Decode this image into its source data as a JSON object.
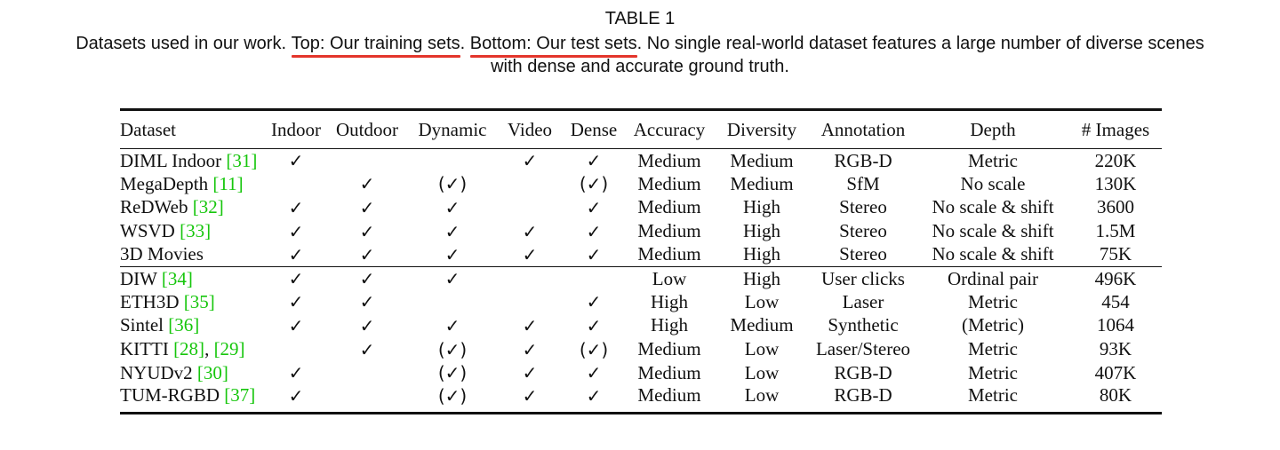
{
  "caption": {
    "title": "TABLE 1",
    "line1_pre": "Datasets used in our work. ",
    "line1_hl1": "Top: Our training sets",
    "line1_mid": ". ",
    "line1_hl2": "Bottom: Our test sets",
    "line1_post": ". No single real-world dataset features a large number of diverse scenes",
    "line2": "with dense and accurate ground truth."
  },
  "colors": {
    "underline": "#e3352b",
    "reference": "#16c60c"
  },
  "table": {
    "headers": [
      "Dataset",
      "Indoor",
      "Outdoor",
      "Dynamic",
      "Video",
      "Dense",
      "Accuracy",
      "Diversity",
      "Annotation",
      "Depth",
      "# Images"
    ],
    "training_rows": [
      {
        "name": "DIML Indoor ",
        "refs": [
          {
            "text": "[31]",
            "ref": true
          }
        ],
        "indoor": "✓",
        "outdoor": "",
        "dynamic": "",
        "video": "✓",
        "dense": "✓",
        "accuracy": "Medium",
        "diversity": "Medium",
        "annotation": "RGB-D",
        "depth": "Metric",
        "images": "220K"
      },
      {
        "name": "MegaDepth ",
        "refs": [
          {
            "text": "[11]",
            "ref": true
          }
        ],
        "indoor": "",
        "outdoor": "✓",
        "dynamic": "(✓)",
        "video": "",
        "dense": "(✓)",
        "accuracy": "Medium",
        "diversity": "Medium",
        "annotation": "SfM",
        "depth": "No scale",
        "images": "130K"
      },
      {
        "name": "ReDWeb ",
        "refs": [
          {
            "text": "[32]",
            "ref": true
          }
        ],
        "indoor": "✓",
        "outdoor": "✓",
        "dynamic": "✓",
        "video": "",
        "dense": "✓",
        "accuracy": "Medium",
        "diversity": "High",
        "annotation": "Stereo",
        "depth": "No scale & shift",
        "images": "3600"
      },
      {
        "name": "WSVD ",
        "refs": [
          {
            "text": "[33]",
            "ref": true
          }
        ],
        "indoor": "✓",
        "outdoor": "✓",
        "dynamic": "✓",
        "video": "✓",
        "dense": "✓",
        "accuracy": "Medium",
        "diversity": "High",
        "annotation": "Stereo",
        "depth": "No scale & shift",
        "images": "1.5M"
      },
      {
        "name": "3D Movies",
        "refs": [],
        "indoor": "✓",
        "outdoor": "✓",
        "dynamic": "✓",
        "video": "✓",
        "dense": "✓",
        "accuracy": "Medium",
        "diversity": "High",
        "annotation": "Stereo",
        "depth": "No scale & shift",
        "images": "75K"
      }
    ],
    "test_rows": [
      {
        "name": "DIW ",
        "refs": [
          {
            "text": "[34]",
            "ref": true
          }
        ],
        "indoor": "✓",
        "outdoor": "✓",
        "dynamic": "✓",
        "video": "",
        "dense": "",
        "accuracy": "Low",
        "diversity": "High",
        "annotation": "User clicks",
        "depth": "Ordinal pair",
        "images": "496K"
      },
      {
        "name": "ETH3D ",
        "refs": [
          {
            "text": "[35]",
            "ref": true
          }
        ],
        "indoor": "✓",
        "outdoor": "✓",
        "dynamic": "",
        "video": "",
        "dense": "✓",
        "accuracy": "High",
        "diversity": "Low",
        "annotation": "Laser",
        "depth": "Metric",
        "images": "454"
      },
      {
        "name": "Sintel ",
        "refs": [
          {
            "text": "[36]",
            "ref": true
          }
        ],
        "indoor": "✓",
        "outdoor": "✓",
        "dynamic": "✓",
        "video": "✓",
        "dense": "✓",
        "accuracy": "High",
        "diversity": "Medium",
        "annotation": "Synthetic",
        "depth": "(Metric)",
        "images": "1064"
      },
      {
        "name": "KITTI ",
        "refs": [
          {
            "text": "[28]",
            "ref": true
          },
          {
            "text": ", ",
            "ref": false
          },
          {
            "text": "[29]",
            "ref": true
          }
        ],
        "indoor": "",
        "outdoor": "✓",
        "dynamic": "(✓)",
        "video": "✓",
        "dense": "(✓)",
        "accuracy": "Medium",
        "diversity": "Low",
        "annotation": "Laser/Stereo",
        "depth": "Metric",
        "images": "93K"
      },
      {
        "name": "NYUDv2 ",
        "refs": [
          {
            "text": "[30]",
            "ref": true
          }
        ],
        "indoor": "✓",
        "outdoor": "",
        "dynamic": "(✓)",
        "video": "✓",
        "dense": "✓",
        "accuracy": "Medium",
        "diversity": "Low",
        "annotation": "RGB-D",
        "depth": "Metric",
        "images": "407K"
      },
      {
        "name": "TUM-RGBD ",
        "refs": [
          {
            "text": "[37]",
            "ref": true
          }
        ],
        "indoor": "✓",
        "outdoor": "",
        "dynamic": "(✓)",
        "video": "✓",
        "dense": "✓",
        "accuracy": "Medium",
        "diversity": "Low",
        "annotation": "RGB-D",
        "depth": "Metric",
        "images": "80K"
      }
    ]
  }
}
